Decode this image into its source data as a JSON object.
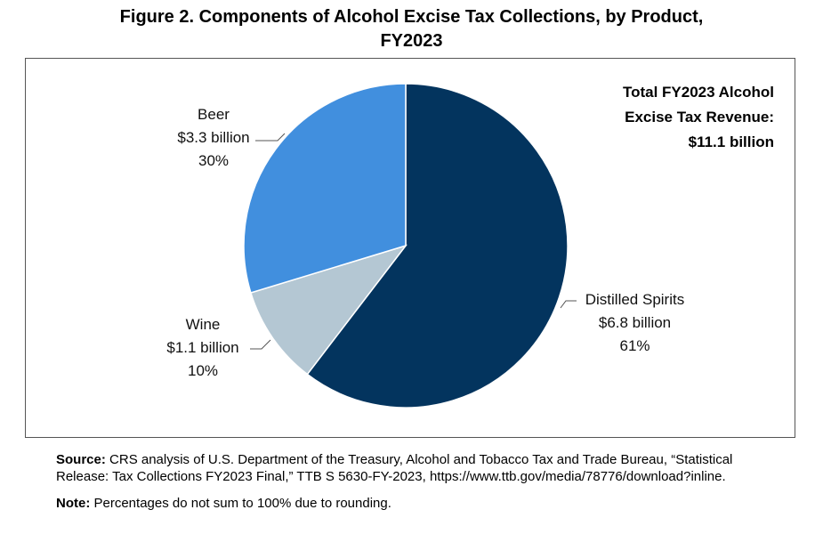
{
  "title": {
    "line1": "Figure 2. Components of Alcohol Excise Tax Collections, by Product,",
    "line2": "FY2023"
  },
  "total_box": {
    "line1": "Total FY2023 Alcohol",
    "line2": "Excise Tax Revenue:",
    "line3": "$11.1 billion"
  },
  "chart_data": {
    "type": "pie",
    "title": "Components of Alcohol Excise Tax Collections, by Product, FY2023",
    "unit": "billion USD",
    "start_angle_deg": 0,
    "direction": "clockwise",
    "slices": [
      {
        "name": "Distilled Spirits",
        "value": 6.8,
        "value_label": "$6.8 billion",
        "percent": 61,
        "percent_label": "61%",
        "color": "#03345E"
      },
      {
        "name": "Wine",
        "value": 1.1,
        "value_label": "$1.1 billion",
        "percent": 10,
        "percent_label": "10%",
        "color": "#B4C7D3"
      },
      {
        "name": "Beer",
        "value": 3.3,
        "value_label": "$3.3 billion",
        "percent": 30,
        "percent_label": "30%",
        "color": "#418FDE"
      }
    ],
    "total_label": "$11.1 billion",
    "legend": "none"
  },
  "notes": {
    "source_label": "Source:",
    "source_text": " CRS analysis of U.S. Department of the Treasury, Alcohol and Tobacco Tax and Trade Bureau, “Statistical Release: Tax Collections FY2023 Final,” TTB S 5630-FY-2023, https://www.ttb.gov/media/78776/download?inline.",
    "note_label": "Note:",
    "note_text": " Percentages do not sum to 100% due to rounding."
  },
  "colors": {
    "frame": "#555555",
    "leader": "#555555"
  }
}
